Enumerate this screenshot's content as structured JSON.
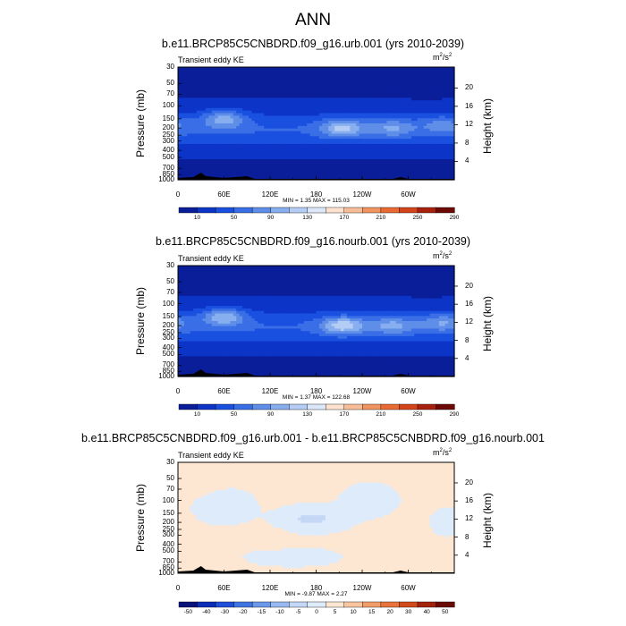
{
  "title": "ANN",
  "panels": [
    {
      "subtitle": "b.e11.BRCP85C5CNBDRD.f09_g16.urb.001 (yrs 2010-2039)",
      "variable": "Transient eddy KE",
      "units": "m",
      "units_exp": "2",
      "units_tail": "/s",
      "units_exp2": "2",
      "ylabel": "Pressure (mb)",
      "ylabel_right": "Height (km)",
      "yticks": [
        "30",
        "50",
        "70",
        "100",
        "150",
        "200",
        "250",
        "300",
        "400",
        "500",
        "700",
        "850",
        "1000"
      ],
      "yticks_right": [
        "20",
        "16",
        "12",
        "8",
        "4"
      ],
      "xticks": [
        "0",
        "60E",
        "120E",
        "180",
        "120W",
        "60W"
      ],
      "min_label": "MIN =",
      "min": "1.35",
      "max_label": "MAX =",
      "max": "115.03",
      "colorbar_levels": [
        "10",
        "50",
        "90",
        "130",
        "170",
        "210",
        "250",
        "290"
      ]
    },
    {
      "subtitle": "b.e11.BRCP85C5CNBDRD.f09_g16.nourb.001 (yrs 2010-2039)",
      "variable": "Transient eddy KE",
      "units": "m",
      "units_exp": "2",
      "units_tail": "/s",
      "units_exp2": "2",
      "ylabel": "Pressure (mb)",
      "ylabel_right": "Height (km)",
      "yticks": [
        "30",
        "50",
        "70",
        "100",
        "150",
        "200",
        "250",
        "300",
        "400",
        "500",
        "700",
        "850",
        "1000"
      ],
      "yticks_right": [
        "20",
        "16",
        "12",
        "8",
        "4"
      ],
      "xticks": [
        "0",
        "60E",
        "120E",
        "180",
        "120W",
        "60W"
      ],
      "min_label": "MIN =",
      "min": "1.37",
      "max_label": "MAX =",
      "max": "122.68",
      "colorbar_levels": [
        "10",
        "50",
        "90",
        "130",
        "170",
        "210",
        "250",
        "290"
      ]
    },
    {
      "subtitle": "b.e11.BRCP85C5CNBDRD.f09_g16.urb.001 - b.e11.BRCP85C5CNBDRD.f09_g16.nourb.001",
      "variable": "Transient eddy KE",
      "units": "m",
      "units_exp": "2",
      "units_tail": "/s",
      "units_exp2": "2",
      "ylabel": "Pressure (mb)",
      "ylabel_right": "Height (km)",
      "yticks": [
        "30",
        "50",
        "70",
        "100",
        "150",
        "200",
        "250",
        "300",
        "400",
        "500",
        "700",
        "850",
        "1000"
      ],
      "yticks_right": [
        "20",
        "16",
        "12",
        "8",
        "4"
      ],
      "xticks": [
        "0",
        "60E",
        "120E",
        "180",
        "120W",
        "60W"
      ],
      "min_label": "MIN =",
      "min": "-9.87",
      "max_label": "MAX =",
      "max": "2.27",
      "colorbar_levels": [
        "-50",
        "-40",
        "-30",
        "-20",
        "-15",
        "-10",
        "-5",
        "0",
        "5",
        "10",
        "15",
        "20",
        "30",
        "40",
        "50"
      ]
    }
  ],
  "colors": {
    "abs_palette": [
      "#0a1e9a",
      "#0c35c7",
      "#1a50e0",
      "#3a6ee6",
      "#5f8ee8",
      "#87aeee",
      "#b5cdf4",
      "#dce8fa",
      "#fde3cf",
      "#f7bd96",
      "#f2945f",
      "#e96a33",
      "#d4441a",
      "#a8210c",
      "#6e0a06"
    ],
    "diff_palette": [
      "#08137a",
      "#0c2db8",
      "#1f4fd8",
      "#3f75e2",
      "#6a98ea",
      "#97b8f0",
      "#c4d8f6",
      "#deebfb",
      "#fde7d2",
      "#f8c59f",
      "#f29d68",
      "#e8743c",
      "#d24b1d",
      "#a4230d",
      "#6b0b06"
    ],
    "topography": "#000000"
  },
  "chart_data": [
    {
      "type": "heatmap",
      "title": "b.e11.BRCP85C5CNBDRD.f09_g16.urb.001 (yrs 2010-2039)",
      "xlabel": "",
      "ylabel": "Pressure (mb)",
      "ylabel_right": "Height (km)",
      "x_ticks": [
        "0",
        "60E",
        "120E",
        "180",
        "120W",
        "60W"
      ],
      "y_ticks_pressure": [
        30,
        50,
        70,
        100,
        150,
        200,
        250,
        300,
        400,
        500,
        700,
        850,
        1000
      ],
      "y_ticks_height_km": [
        20,
        16,
        12,
        8,
        4
      ],
      "y_scale": "log",
      "x_range_deg": [
        0,
        360
      ],
      "y_range_mb": [
        1000,
        30
      ],
      "contour_levels": [
        10,
        30,
        50,
        70,
        90,
        110,
        130,
        150,
        170,
        190,
        210,
        230,
        250,
        270,
        290
      ],
      "colorbar_labels": [
        10,
        50,
        90,
        130,
        170,
        210,
        250,
        290
      ],
      "min": 1.35,
      "max": 115.03,
      "units": "m2/s2",
      "variable": "Transient eddy KE",
      "jet_cores": [
        {
          "lon": 60,
          "pressure_mb": 150,
          "value": 110
        },
        {
          "lon": 215,
          "pressure_mb": 200,
          "value": 115
        },
        {
          "lon": 280,
          "pressure_mb": 200,
          "value": 90
        },
        {
          "lon": 345,
          "pressure_mb": 180,
          "value": 80
        }
      ]
    },
    {
      "type": "heatmap",
      "title": "b.e11.BRCP85C5CNBDRD.f09_g16.nourb.001 (yrs 2010-2039)",
      "xlabel": "",
      "ylabel": "Pressure (mb)",
      "ylabel_right": "Height (km)",
      "x_ticks": [
        "0",
        "60E",
        "120E",
        "180",
        "120W",
        "60W"
      ],
      "y_ticks_pressure": [
        30,
        50,
        70,
        100,
        150,
        200,
        250,
        300,
        400,
        500,
        700,
        850,
        1000
      ],
      "y_ticks_height_km": [
        20,
        16,
        12,
        8,
        4
      ],
      "y_scale": "log",
      "x_range_deg": [
        0,
        360
      ],
      "y_range_mb": [
        1000,
        30
      ],
      "contour_levels": [
        10,
        30,
        50,
        70,
        90,
        110,
        130,
        150,
        170,
        190,
        210,
        230,
        250,
        270,
        290
      ],
      "colorbar_labels": [
        10,
        50,
        90,
        130,
        170,
        210,
        250,
        290
      ],
      "min": 1.37,
      "max": 122.68,
      "units": "m2/s2",
      "variable": "Transient eddy KE",
      "jet_cores": [
        {
          "lon": 60,
          "pressure_mb": 150,
          "value": 115
        },
        {
          "lon": 215,
          "pressure_mb": 200,
          "value": 122
        },
        {
          "lon": 280,
          "pressure_mb": 200,
          "value": 95
        },
        {
          "lon": 345,
          "pressure_mb": 180,
          "value": 90
        }
      ]
    },
    {
      "type": "heatmap",
      "title": "b.e11.BRCP85C5CNBDRD.f09_g16.urb.001 - b.e11.BRCP85C5CNBDRD.f09_g16.nourb.001",
      "xlabel": "",
      "ylabel": "Pressure (mb)",
      "ylabel_right": "Height (km)",
      "x_ticks": [
        "0",
        "60E",
        "120E",
        "180",
        "120W",
        "60W"
      ],
      "y_ticks_pressure": [
        30,
        50,
        70,
        100,
        150,
        200,
        250,
        300,
        400,
        500,
        700,
        850,
        1000
      ],
      "y_ticks_height_km": [
        20,
        16,
        12,
        8,
        4
      ],
      "y_scale": "log",
      "x_range_deg": [
        0,
        360
      ],
      "y_range_mb": [
        1000,
        30
      ],
      "contour_levels": [
        -50,
        -40,
        -30,
        -20,
        -15,
        -10,
        -5,
        0,
        5,
        10,
        15,
        20,
        30,
        40,
        50
      ],
      "colorbar_labels": [
        -50,
        -40,
        -30,
        -20,
        -15,
        -10,
        -5,
        0,
        5,
        10,
        15,
        20,
        30,
        40,
        50
      ],
      "min": -9.87,
      "max": 2.27,
      "units": "m2/s2",
      "variable": "Transient eddy KE",
      "negative_regions": [
        {
          "lon": 175,
          "pressure_mb": 180,
          "value": -9.87
        }
      ]
    }
  ]
}
